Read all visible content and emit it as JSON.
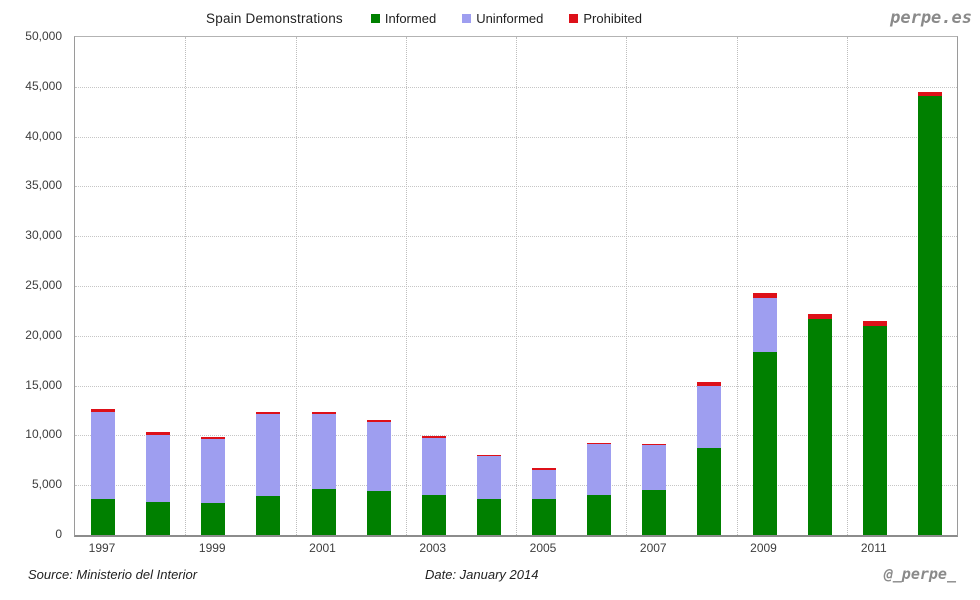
{
  "header": {
    "title": "Spain Demonstrations",
    "watermark": "perpe.es"
  },
  "footer": {
    "source": "Source: Ministerio del Interior",
    "date": "Date: January 2014",
    "handle": "@_perpe_"
  },
  "chart_data": {
    "type": "bar",
    "stacked": true,
    "title": "Spain Demonstrations",
    "categories": [
      1997,
      1998,
      1999,
      2000,
      2001,
      2002,
      2003,
      2004,
      2005,
      2006,
      2007,
      2008,
      2009,
      2010,
      2011,
      2012
    ],
    "x_tick_labels": [
      "1997",
      "1999",
      "2001",
      "2003",
      "2005",
      "2007",
      "2009",
      "2011"
    ],
    "series": [
      {
        "name": "Informed",
        "color": "#008000",
        "values": [
          3650,
          3350,
          3250,
          3950,
          4600,
          4400,
          4000,
          3600,
          3600,
          4000,
          4500,
          8700,
          18400,
          21650,
          21000,
          44050
        ]
      },
      {
        "name": "Uninformed",
        "color": "#9e9ef0",
        "values": [
          8750,
          6700,
          6350,
          8200,
          7550,
          6950,
          5750,
          4300,
          2950,
          5100,
          4500,
          6250,
          5400,
          0,
          0,
          0
        ]
      },
      {
        "name": "Prohibited",
        "color": "#dd1019",
        "values": [
          250,
          250,
          200,
          200,
          200,
          200,
          200,
          150,
          150,
          150,
          150,
          450,
          450,
          500,
          500,
          400
        ]
      }
    ],
    "totals": [
      12650,
      10300,
      9800,
      12350,
      12350,
      11550,
      9950,
      8050,
      6700,
      9250,
      9150,
      15400,
      24250,
      22150,
      21500,
      44450
    ],
    "ylim": [
      0,
      50000
    ],
    "y_tick_step": 5000,
    "ylabel": "",
    "xlabel": "",
    "grid": "dotted",
    "legend_position": "top"
  }
}
